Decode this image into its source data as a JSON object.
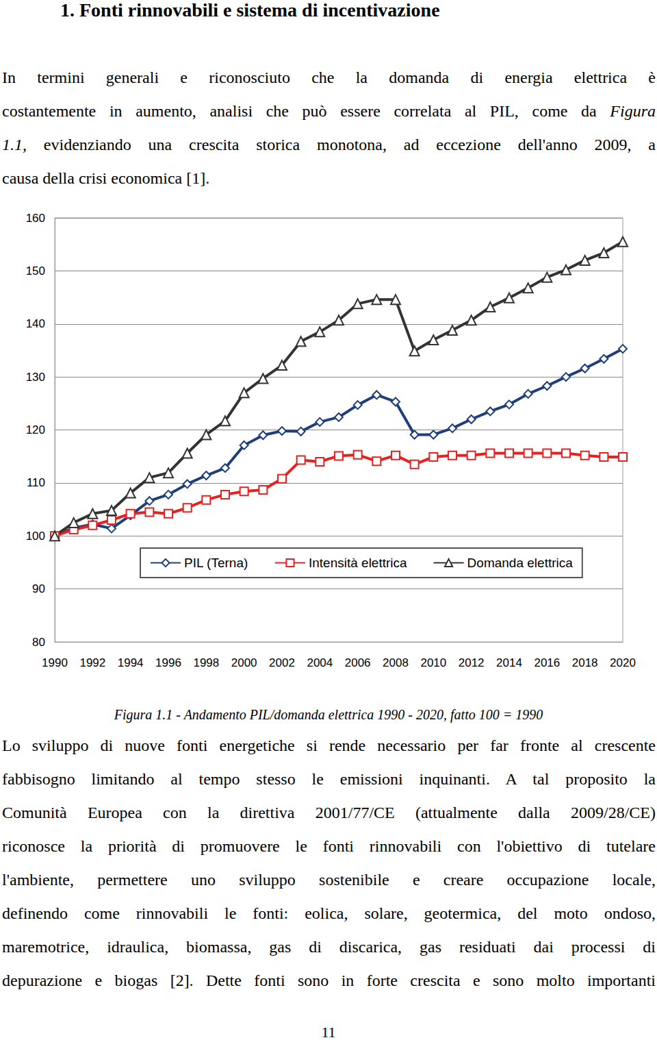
{
  "heading": "1.  Fonti rinnovabili e sistema di incentivazione",
  "paragraphs": [
    [
      [
        {
          "text": "In termini generali e riconosciuto che la domanda di energia elettrica è"
        }
      ],
      [
        {
          "text": "costantemente in aumento, analisi che può essere correlata al PIL, come da "
        },
        {
          "text": "Figura",
          "italic": true
        }
      ],
      [
        {
          "text": "1.1,",
          "italic": true
        },
        {
          "text": " evidenziando una crescita storica monotona, ad eccezione dell'anno 2009, a"
        }
      ],
      [
        {
          "text": "causa della crisi economica [1]."
        }
      ]
    ],
    [
      [
        {
          "text": "Lo sviluppo di nuove fonti energetiche si rende necessario per far fronte al crescente"
        }
      ],
      [
        {
          "text": "fabbisogno limitando al tempo stesso le emissioni inquinanti. A tal proposito la"
        }
      ],
      [
        {
          "text": "Comunità Europea con la direttiva 2001/77/CE (attualmente dalla 2009/28/CE)"
        }
      ],
      [
        {
          "text": "riconosce la priorità di promuovere le fonti rinnovabili con l'obiettivo di tutelare"
        }
      ],
      [
        {
          "text": "l'ambiente, permettere uno sviluppo sostenibile e creare occupazione locale,"
        }
      ],
      [
        {
          "text": "definendo come rinnovabili le fonti: eolica, solare, geotermica, del moto ondoso,"
        }
      ],
      [
        {
          "text": "maremotrice, idraulica, biomassa, gas di discarica, gas residuati dai processi di"
        }
      ],
      [
        {
          "text": "depurazione e biogas [2]. Dette fonti sono in forte crescita e sono molto importanti"
        }
      ]
    ]
  ],
  "chart_data": {
    "type": "line",
    "x": [
      1990,
      1991,
      1992,
      1993,
      1994,
      1995,
      1996,
      1997,
      1998,
      1999,
      2000,
      2001,
      2002,
      2003,
      2004,
      2005,
      2006,
      2007,
      2008,
      2009,
      2010,
      2011,
      2012,
      2013,
      2014,
      2015,
      2016,
      2017,
      2018,
      2019,
      2020
    ],
    "series": [
      {
        "name": "PIL (Terna)",
        "color": "#1f3f7a",
        "marker": "diamond",
        "line_style": "solid",
        "values": [
          100,
          101.5,
          102.2,
          101.4,
          103.9,
          106.6,
          107.8,
          109.8,
          111.4,
          112.8,
          117.1,
          119,
          119.8,
          119.7,
          121.5,
          122.4,
          124.7,
          126.6,
          125.3,
          119.1,
          119.1,
          120.3,
          122,
          123.5,
          124.8,
          126.8,
          128.3,
          130,
          131.6,
          133.4,
          135.3
        ]
      },
      {
        "name": "Intensità elettrica",
        "color": "#e8201f",
        "marker": "square",
        "line_style": "solid",
        "values": [
          100,
          101.2,
          102,
          103,
          104.2,
          104.5,
          104.2,
          105.3,
          106.8,
          107.8,
          108.4,
          108.7,
          110.8,
          114.3,
          114,
          115.1,
          115.3,
          114.1,
          115.2,
          113.5,
          114.9,
          115.2,
          115.2,
          115.6,
          115.6,
          115.6,
          115.6,
          115.6,
          115.2,
          114.9,
          114.9
        ]
      },
      {
        "name": "Domanda elettrica",
        "color": "#333333",
        "marker": "triangle",
        "line_style": "solid",
        "values": [
          100,
          102.5,
          104.2,
          104.8,
          108.1,
          111,
          111.9,
          115.6,
          119.1,
          121.7,
          127,
          129.7,
          132.2,
          136.7,
          138.5,
          140.7,
          143.8,
          144.6,
          144.6,
          134.9,
          137,
          138.8,
          140.7,
          143.2,
          144.9,
          146.8,
          148.8,
          150.2,
          152,
          153.4,
          155.5
        ]
      }
    ],
    "xlim": [
      1990,
      2020
    ],
    "xticks": [
      1990,
      1992,
      1994,
      1996,
      1998,
      2000,
      2002,
      2004,
      2006,
      2008,
      2010,
      2012,
      2014,
      2016,
      2018,
      2020
    ],
    "ylim": [
      80,
      160
    ],
    "yticks": [
      80,
      90,
      100,
      110,
      120,
      130,
      140,
      150,
      160
    ],
    "grid": true,
    "legend": "bottom"
  },
  "caption": "Figura 1.1 - Andamento PIL/domanda elettrica 1990 - 2020, fatto 100 = 1990",
  "page_number": "11"
}
